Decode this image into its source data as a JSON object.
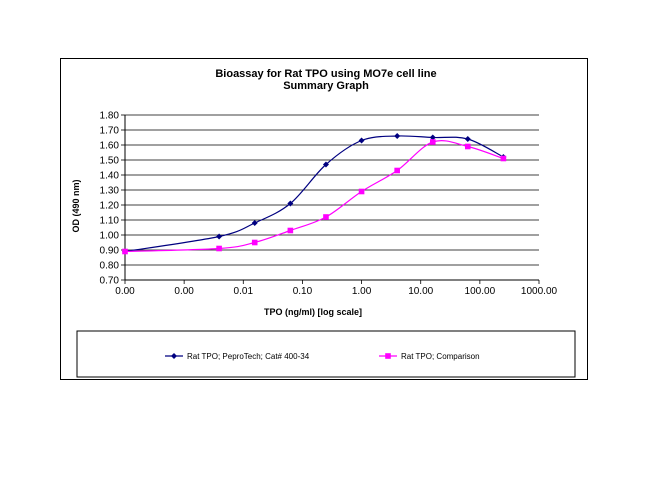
{
  "chart_data": {
    "type": "line",
    "title": "Bioassay for Rat TPO using MO7e cell line",
    "subtitle": "Summary Graph",
    "xlabel": "TPO (ng/ml) [log scale]",
    "ylabel": "OD (490 nm)",
    "x_scale": "log",
    "xlim": [
      0.0001,
      1000
    ],
    "ylim": [
      0.7,
      1.8
    ],
    "x_tick_values": [
      0.0001,
      0.001,
      0.01,
      0.1,
      1,
      10,
      100,
      1000
    ],
    "x_tick_labels": [
      "0.00",
      "0.00",
      "0.01",
      "0.10",
      "1.00",
      "10.00",
      "100.00",
      "1000.00"
    ],
    "y_ticks": [
      0.7,
      0.8,
      0.9,
      1.0,
      1.1,
      1.2,
      1.3,
      1.4,
      1.5,
      1.6,
      1.7,
      1.8
    ],
    "y_tick_labels": [
      "0.70",
      "0.80",
      "0.90",
      "1.00",
      "1.10",
      "1.20",
      "1.30",
      "1.40",
      "1.50",
      "1.60",
      "1.70",
      "1.80"
    ],
    "grid": "horizontal",
    "legend_position": "bottom",
    "series": [
      {
        "name": "Rat TPO; PeproTech; Cat# 400-34",
        "color": "#000080",
        "marker": "diamond",
        "x": [
          0.0001,
          0.0039,
          0.0156,
          0.0625,
          0.25,
          1,
          4,
          16,
          62.5,
          250
        ],
        "values": [
          0.89,
          0.99,
          1.08,
          1.21,
          1.47,
          1.63,
          1.66,
          1.65,
          1.64,
          1.52
        ]
      },
      {
        "name": "Rat TPO; Comparison",
        "color": "#ff00ff",
        "marker": "square",
        "x": [
          0.0001,
          0.0039,
          0.0156,
          0.0625,
          0.25,
          1,
          4,
          16,
          62.5,
          250
        ],
        "values": [
          0.89,
          0.91,
          0.95,
          1.03,
          1.12,
          1.29,
          1.43,
          1.62,
          1.59,
          1.51
        ]
      }
    ]
  }
}
